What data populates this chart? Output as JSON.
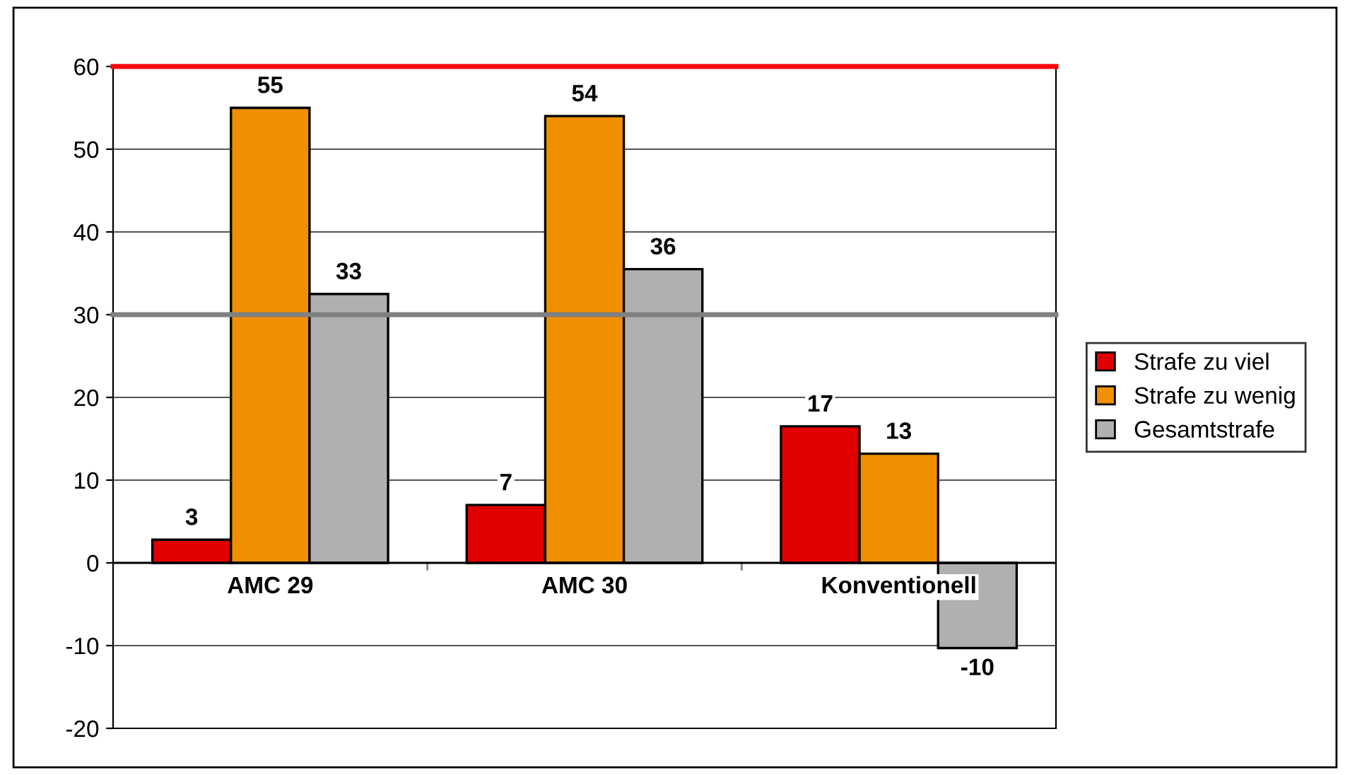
{
  "chart_data": {
    "type": "bar",
    "categories": [
      "AMC 29",
      "AMC 30",
      "Konventionell"
    ],
    "series": [
      {
        "name": "Strafe zu viel",
        "color": "#e00000",
        "values": [
          2.8,
          7,
          16.5
        ],
        "value_labels": [
          "3",
          "7",
          "17"
        ]
      },
      {
        "name": "Strafe zu wenig",
        "color": "#f09000",
        "values": [
          55,
          54,
          13.2
        ],
        "value_labels": [
          "55",
          "54",
          "13"
        ]
      },
      {
        "name": "Gesamtstrafe",
        "color": "#b0b0b0",
        "values": [
          32.5,
          35.5,
          -10.3
        ],
        "value_labels": [
          "33",
          "36",
          "-10"
        ]
      }
    ],
    "ylim": [
      -20,
      60
    ],
    "yticks": [
      -20,
      -10,
      0,
      10,
      20,
      30,
      40,
      50,
      60
    ],
    "grid": "y",
    "legend": "right",
    "ref_lines": [
      {
        "axis": "y",
        "value": 60,
        "color": "#ff0000"
      },
      {
        "axis": "y",
        "value": 30,
        "color": "#808080"
      }
    ]
  }
}
